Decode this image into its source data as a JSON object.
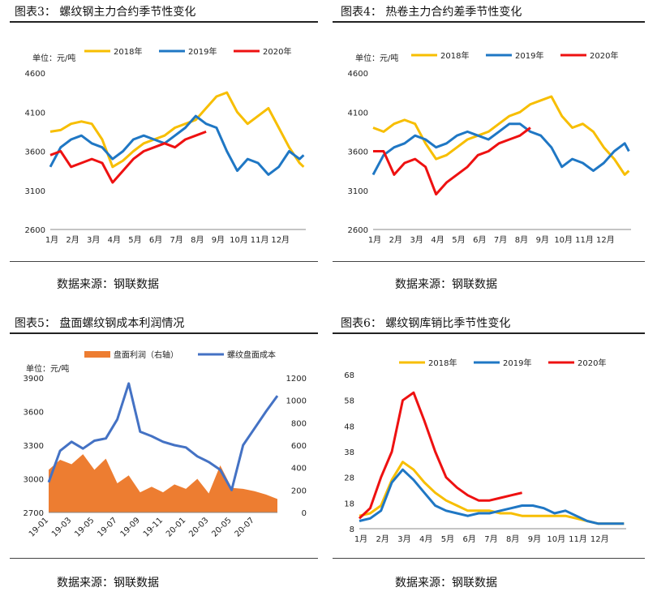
{
  "panels": {
    "fig3": {
      "title": "图表3：   螺纹钢主力合约季节性变化",
      "source": "数据来源：钢联数据"
    },
    "fig4": {
      "title": "图表4：   热卷主力合约差季节性变化",
      "source": "数据来源：钢联数据"
    },
    "fig5": {
      "title": "图表5：   盘面螺纹钢成本利润情况",
      "source": "数据来源：钢联数据"
    },
    "fig6": {
      "title": "图表6：   螺纹钢库销比季节性变化",
      "source": "数据来源：钢联数据"
    }
  },
  "colors": {
    "y2018": "#F7BE00",
    "y2019": "#1F77C4",
    "y2020": "#EE1111",
    "cost": "#4472C4",
    "profit": "#ED7D31"
  },
  "chart_data": [
    {
      "id": "fig3",
      "type": "line",
      "unit_label": "单位：元/吨",
      "ylim": [
        2600,
        4600
      ],
      "yticks": [
        2600,
        3100,
        3600,
        4100,
        4600
      ],
      "xlim": [
        0,
        12.3
      ],
      "xticks": [
        "1月",
        "2月",
        "3月",
        "4月",
        "5月",
        "6月",
        "7月",
        "8月",
        "9月",
        "10月",
        "11月",
        "12月"
      ],
      "series": [
        {
          "name": "2018年",
          "color_key": "y2018",
          "x": [
            0,
            0.5,
            1,
            1.5,
            2,
            2.5,
            3,
            3.5,
            4,
            4.5,
            5,
            5.5,
            6,
            6.5,
            7,
            7.5,
            8,
            8.5,
            9,
            9.5,
            10,
            10.5,
            11,
            11.5,
            12,
            12.2
          ],
          "y": [
            3850,
            3870,
            3950,
            3980,
            3950,
            3750,
            3400,
            3480,
            3600,
            3700,
            3750,
            3800,
            3900,
            3950,
            4000,
            4150,
            4300,
            4350,
            4100,
            3950,
            4050,
            4150,
            3900,
            3650,
            3450,
            3400
          ]
        },
        {
          "name": "2019年",
          "color_key": "y2019",
          "x": [
            0,
            0.5,
            1,
            1.5,
            2,
            2.5,
            3,
            3.5,
            4,
            4.5,
            5,
            5.5,
            6,
            6.5,
            7,
            7.5,
            8,
            8.5,
            9,
            9.5,
            10,
            10.5,
            11,
            11.5,
            12,
            12.2
          ],
          "y": [
            3400,
            3650,
            3750,
            3800,
            3700,
            3650,
            3500,
            3600,
            3750,
            3800,
            3750,
            3700,
            3800,
            3900,
            4050,
            3950,
            3900,
            3600,
            3350,
            3500,
            3450,
            3300,
            3400,
            3600,
            3500,
            3550
          ]
        },
        {
          "name": "2020年",
          "color_key": "y2020",
          "x": [
            0,
            0.5,
            1,
            1.5,
            2,
            2.5,
            3,
            3.5,
            4,
            4.5,
            5,
            5.5,
            6,
            6.5,
            7,
            7.5
          ],
          "y": [
            3550,
            3600,
            3400,
            3450,
            3500,
            3450,
            3200,
            3350,
            3500,
            3600,
            3650,
            3700,
            3650,
            3750,
            3800,
            3850
          ]
        }
      ]
    },
    {
      "id": "fig4",
      "type": "line",
      "unit_label": "单位：元/吨",
      "ylim": [
        2600,
        4600
      ],
      "yticks": [
        2600,
        3100,
        3600,
        4100,
        4600
      ],
      "xlim": [
        0,
        12.3
      ],
      "xticks": [
        "1月",
        "2月",
        "3月",
        "4月",
        "5月",
        "6月",
        "7月",
        "8月",
        "9月",
        "10月",
        "11月",
        "12月"
      ],
      "series": [
        {
          "name": "2018年",
          "color_key": "y2018",
          "x": [
            0,
            0.5,
            1,
            1.5,
            2,
            2.5,
            3,
            3.5,
            4,
            4.5,
            5,
            5.5,
            6,
            6.5,
            7,
            7.5,
            8,
            8.5,
            9,
            9.5,
            10,
            10.5,
            11,
            11.5,
            12,
            12.2
          ],
          "y": [
            3900,
            3850,
            3950,
            4000,
            3950,
            3700,
            3500,
            3550,
            3650,
            3750,
            3800,
            3850,
            3950,
            4050,
            4100,
            4200,
            4250,
            4300,
            4050,
            3900,
            3950,
            3850,
            3650,
            3500,
            3300,
            3350
          ]
        },
        {
          "name": "2019年",
          "color_key": "y2019",
          "x": [
            0,
            0.5,
            1,
            1.5,
            2,
            2.5,
            3,
            3.5,
            4,
            4.5,
            5,
            5.5,
            6,
            6.5,
            7,
            7.5,
            8,
            8.5,
            9,
            9.5,
            10,
            10.5,
            11,
            11.5,
            12,
            12.2
          ],
          "y": [
            3300,
            3550,
            3650,
            3700,
            3800,
            3750,
            3650,
            3700,
            3800,
            3850,
            3800,
            3750,
            3850,
            3950,
            3950,
            3850,
            3800,
            3650,
            3400,
            3500,
            3450,
            3350,
            3450,
            3600,
            3700,
            3600
          ]
        },
        {
          "name": "2020年",
          "color_key": "y2020",
          "x": [
            0,
            0.5,
            1,
            1.5,
            2,
            2.5,
            3,
            3.5,
            4,
            4.5,
            5,
            5.5,
            6,
            6.5,
            7,
            7.5
          ],
          "y": [
            3600,
            3600,
            3300,
            3450,
            3500,
            3400,
            3050,
            3200,
            3300,
            3400,
            3550,
            3600,
            3700,
            3750,
            3800,
            3900
          ]
        }
      ]
    },
    {
      "id": "fig5",
      "type": "area",
      "unit_label": "单位：元/吨",
      "legend": [
        "盘面利润（右轴）",
        "螺纹盘面成本"
      ],
      "ylim": [
        2700,
        3900
      ],
      "yticks": [
        2700,
        3000,
        3300,
        3600,
        3900
      ],
      "y2lim": [
        0,
        1200
      ],
      "y2ticks": [
        0,
        200,
        400,
        600,
        800,
        1000,
        1200
      ],
      "xticks": [
        "19-01",
        "19-03",
        "19-05",
        "19-07",
        "19-09",
        "19-11",
        "20-01",
        "20-03",
        "20-05",
        "20-07"
      ],
      "x_index": [
        0,
        2,
        4,
        6,
        8,
        10,
        12,
        14,
        16,
        18,
        20
      ],
      "cost": [
        2970,
        3250,
        3330,
        3270,
        3340,
        3360,
        3530,
        3850,
        3420,
        3380,
        3330,
        3300,
        3280,
        3200,
        3150,
        3080,
        2900,
        3300,
        3450,
        3600,
        3740
      ],
      "profit": [
        380,
        470,
        430,
        520,
        380,
        480,
        260,
        330,
        180,
        230,
        180,
        250,
        210,
        300,
        170,
        420,
        220,
        210,
        190,
        160,
        120
      ]
    },
    {
      "id": "fig6",
      "type": "line",
      "ylim": [
        8,
        68
      ],
      "yticks": [
        8,
        18,
        28,
        38,
        48,
        58,
        68
      ],
      "xlim": [
        0,
        12.3
      ],
      "xticks": [
        "1月",
        "2月",
        "3月",
        "4月",
        "5月",
        "6月",
        "7月",
        "8月",
        "9月",
        "10月",
        "11月",
        "12月"
      ],
      "series": [
        {
          "name": "2018年",
          "color_key": "y2018",
          "x": [
            0,
            0.5,
            1,
            1.5,
            2,
            2.5,
            3,
            3.5,
            4,
            4.5,
            5,
            5.5,
            6,
            6.5,
            7,
            7.5,
            8,
            8.5,
            9,
            9.5,
            10,
            10.5,
            11,
            11.5,
            12,
            12.2
          ],
          "y": [
            13,
            14,
            17,
            27,
            34,
            31,
            26,
            22,
            19,
            17,
            15,
            15,
            15,
            14,
            14,
            13,
            13,
            13,
            13,
            13,
            12,
            11,
            10,
            10,
            10,
            10
          ]
        },
        {
          "name": "2019年",
          "color_key": "y2019",
          "x": [
            0,
            0.5,
            1,
            1.5,
            2,
            2.5,
            3,
            3.5,
            4,
            4.5,
            5,
            5.5,
            6,
            6.5,
            7,
            7.5,
            8,
            8.5,
            9,
            9.5,
            10,
            10.5,
            11,
            11.5,
            12,
            12.2
          ],
          "y": [
            11,
            12,
            15,
            26,
            31,
            27,
            22,
            17,
            15,
            14,
            13,
            14,
            14,
            15,
            16,
            17,
            17,
            16,
            14,
            15,
            13,
            11,
            10,
            10,
            10,
            10
          ]
        },
        {
          "name": "2020年",
          "color_key": "y2020",
          "x": [
            0,
            0.5,
            1,
            1.5,
            2,
            2.5,
            3,
            3.5,
            4,
            4.5,
            5,
            5.5,
            6,
            6.5,
            7,
            7.5
          ],
          "y": [
            12,
            16,
            28,
            38,
            58,
            61,
            50,
            38,
            28,
            24,
            21,
            19,
            19,
            20,
            21,
            22
          ]
        }
      ]
    }
  ]
}
